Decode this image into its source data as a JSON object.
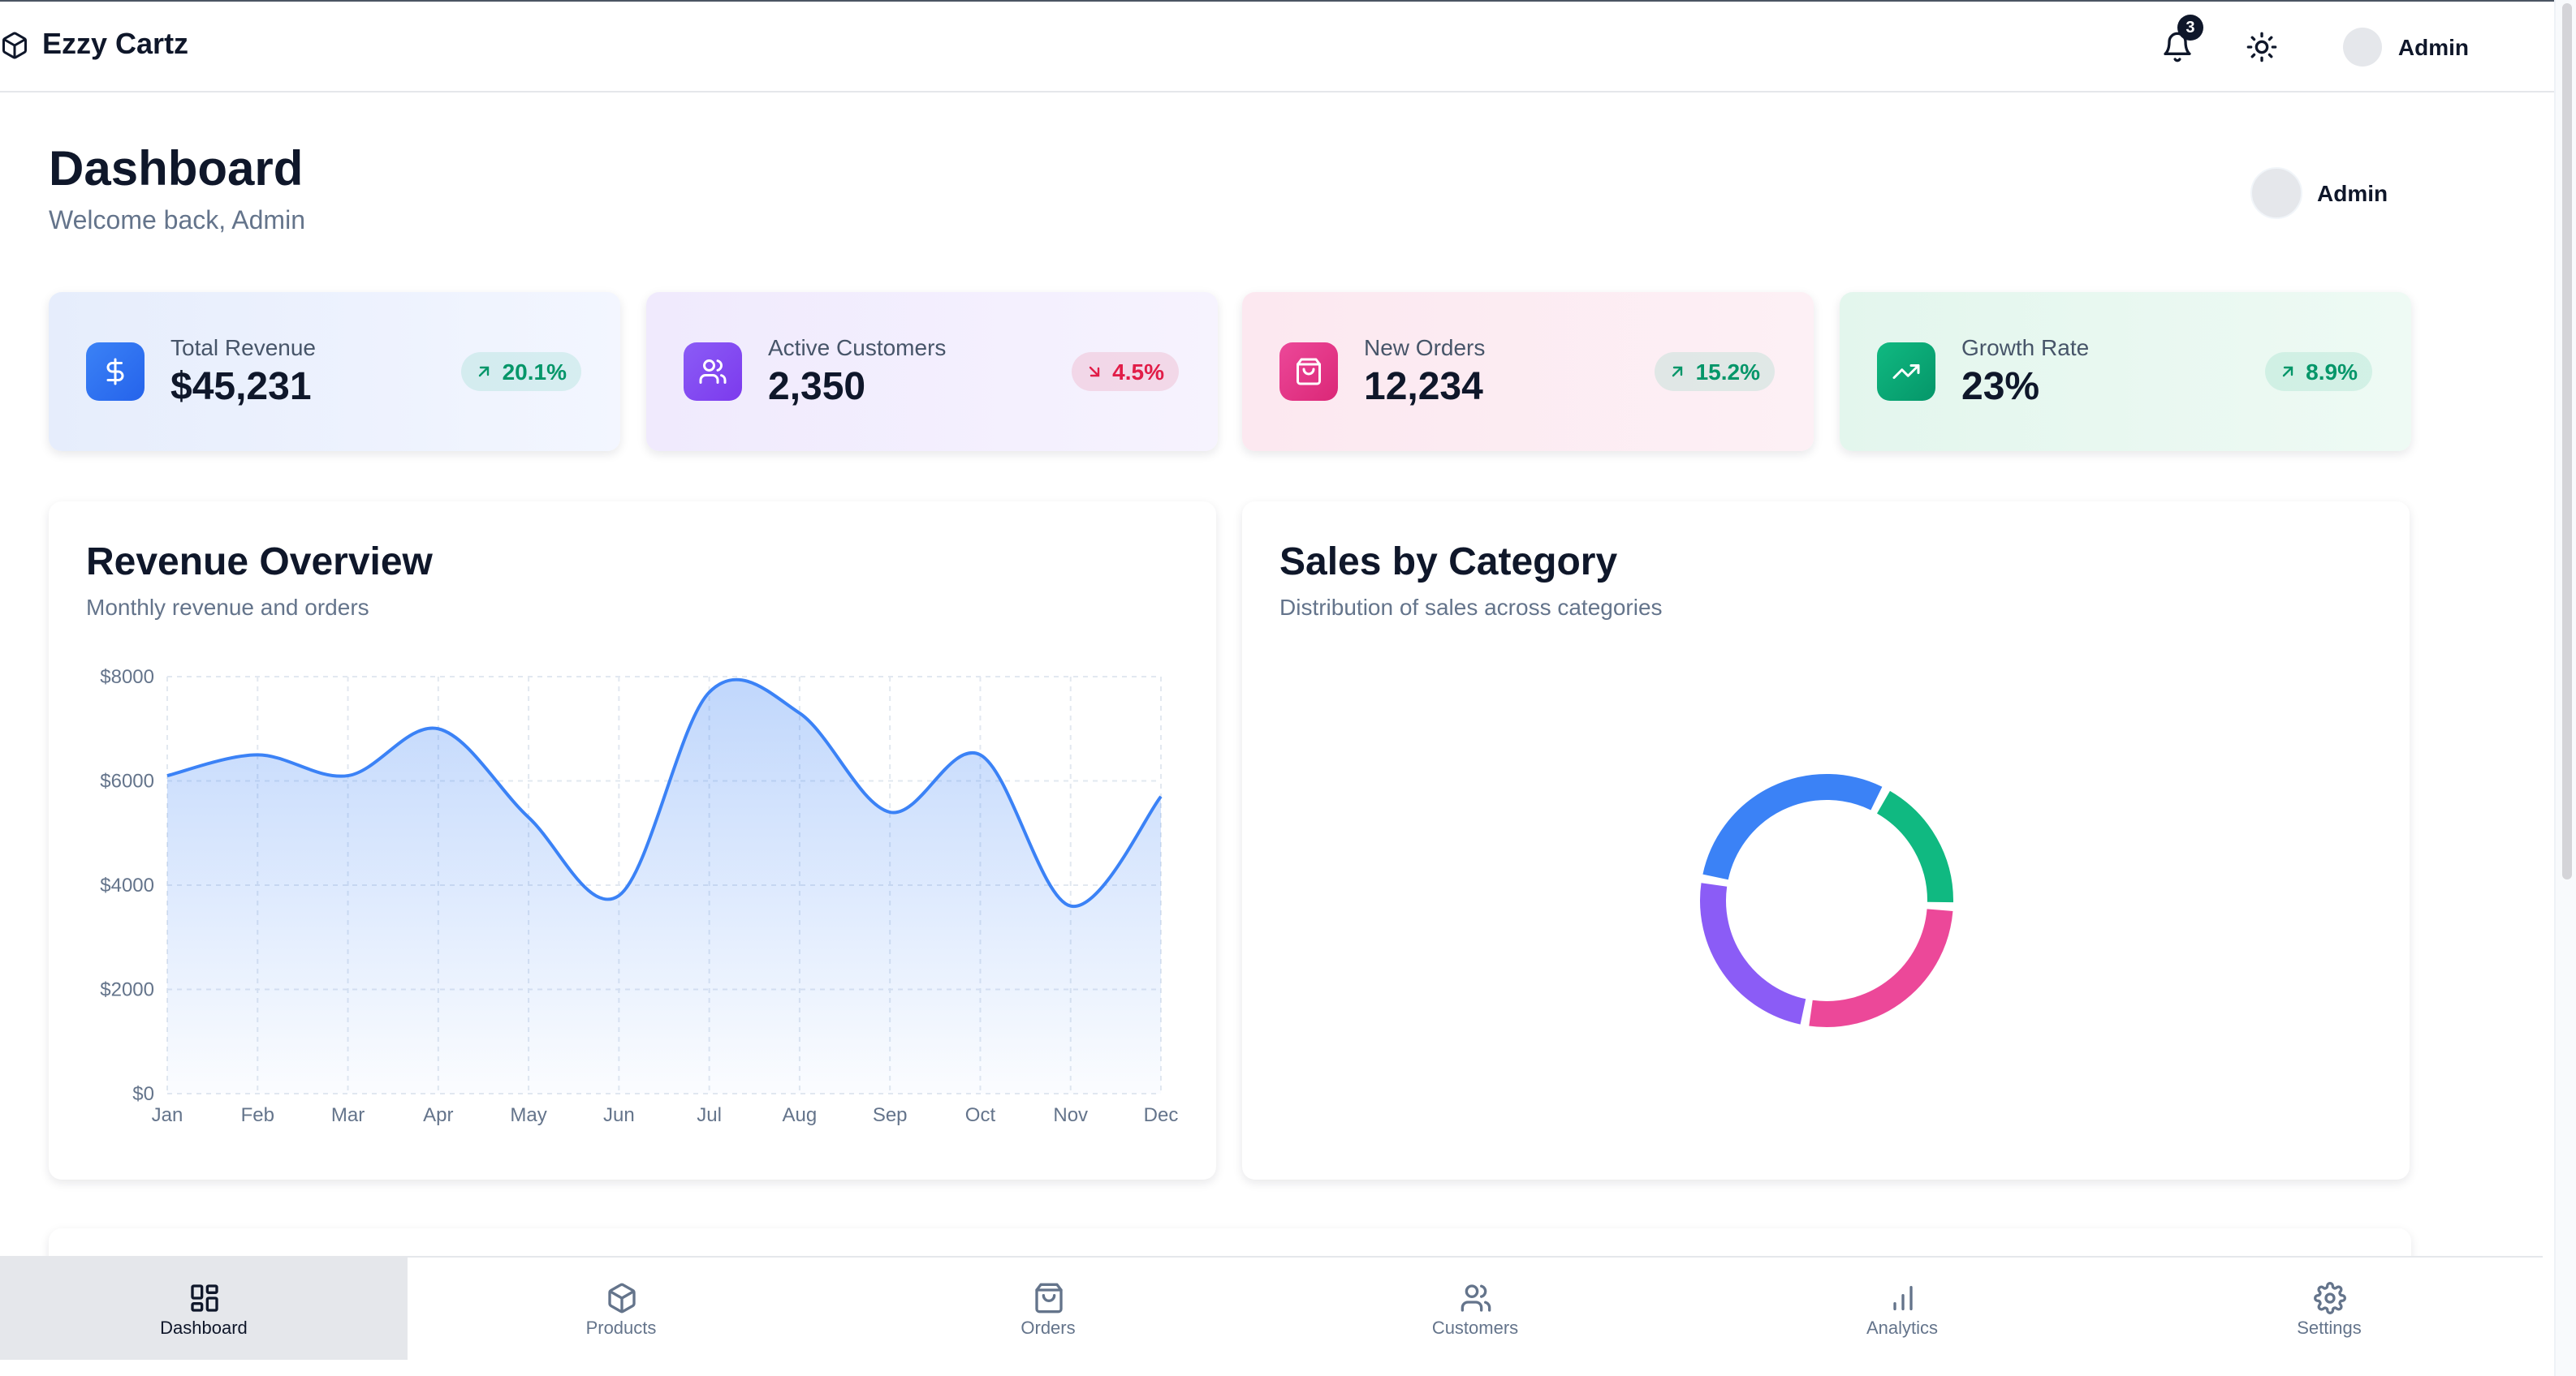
{
  "app": {
    "brand": "Ezzy Cartz",
    "logo_icon": "box-icon"
  },
  "topbar": {
    "notifications": {
      "icon": "bell-icon",
      "count": "3"
    },
    "theme_toggle_icon": "sun-icon",
    "user_name": "Admin"
  },
  "header": {
    "title": "Dashboard",
    "subtitle": "Welcome back, Admin",
    "user_name": "Admin"
  },
  "stats": [
    {
      "label": "Total Revenue",
      "value": "$45,231",
      "change": "20.1%",
      "trend": "up",
      "icon": "dollar-icon",
      "color": "#3b82f6"
    },
    {
      "label": "Active Customers",
      "value": "2,350",
      "change": "4.5%",
      "trend": "down",
      "icon": "users-icon",
      "color": "#8b5cf6"
    },
    {
      "label": "New Orders",
      "value": "12,234",
      "change": "15.2%",
      "trend": "up",
      "icon": "shopping-bag-icon",
      "color": "#ec4899"
    },
    {
      "label": "Growth Rate",
      "value": "23%",
      "change": "8.9%",
      "trend": "up",
      "icon": "trending-up-icon",
      "color": "#10b981"
    }
  ],
  "revenue_panel": {
    "title": "Revenue Overview",
    "subtitle": "Monthly revenue and orders"
  },
  "category_panel": {
    "title": "Sales by Category",
    "subtitle": "Distribution of sales across categories"
  },
  "chart_data": [
    {
      "type": "area",
      "title": "Revenue Overview",
      "x": [
        "Jan",
        "Feb",
        "Mar",
        "Apr",
        "May",
        "Jun",
        "Jul",
        "Aug",
        "Sep",
        "Oct",
        "Nov",
        "Dec"
      ],
      "series": [
        {
          "values": [
            6100,
            6500,
            6100,
            7000,
            5300,
            3800,
            7700,
            7300,
            5400,
            6500,
            3600,
            5700
          ],
          "color": "#3b82f6"
        }
      ],
      "y_ticks": [
        "$0",
        "$2000",
        "$4000",
        "$6000",
        "$8000"
      ],
      "ylim": [
        0,
        8000
      ],
      "grid": true
    },
    {
      "type": "pie",
      "title": "Sales by Category",
      "values": [
        30,
        18,
        27,
        25
      ],
      "colors": [
        "#3b82f6",
        "#10b981",
        "#ec4899",
        "#8b5cf6"
      ]
    }
  ],
  "bottom_nav": [
    {
      "label": "Dashboard",
      "icon": "grid-icon",
      "active": true
    },
    {
      "label": "Products",
      "icon": "box-icon",
      "active": false
    },
    {
      "label": "Orders",
      "icon": "shopping-bag-icon",
      "active": false
    },
    {
      "label": "Customers",
      "icon": "users-icon",
      "active": false
    },
    {
      "label": "Analytics",
      "icon": "bar-chart-icon",
      "active": false
    },
    {
      "label": "Settings",
      "icon": "gear-icon",
      "active": false
    }
  ]
}
